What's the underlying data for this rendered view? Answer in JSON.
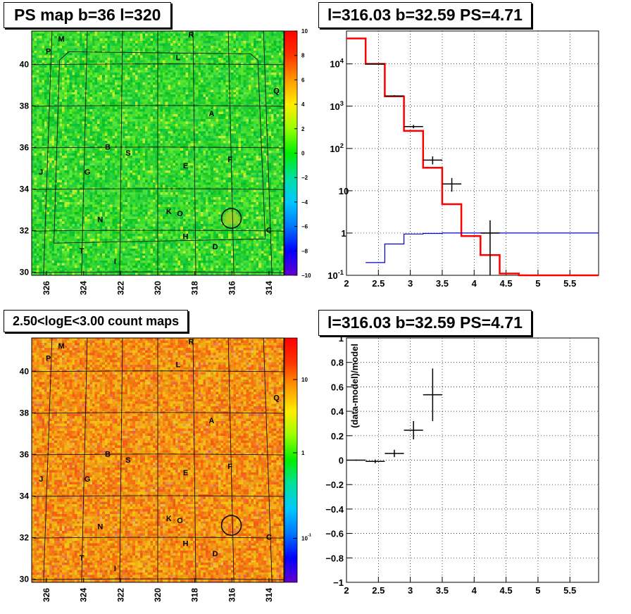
{
  "titles": {
    "map_top": "PS map b=36 l=320",
    "spec_top": "l=316.03 b=32.59 PS=4.71",
    "map_bottom": "2.50<logE<3.00 count maps",
    "spec_bottom": "l=316.03 b=32.59 PS=4.71"
  },
  "chart_data": [
    {
      "type": "heatmap",
      "title": "PS map b=36 l=320",
      "x_ticks": [
        "326",
        "324",
        "322",
        "320",
        "318",
        "316",
        "314"
      ],
      "y_ticks": [
        "30",
        "32",
        "34",
        "36",
        "38",
        "40"
      ],
      "xlim": [
        313.2,
        326.8
      ],
      "ylim": [
        29.85,
        41.6
      ],
      "colorbar": {
        "min": -10,
        "max": 10,
        "ticks": [
          "10",
          "8",
          "6",
          "4",
          "2",
          "0",
          "−2",
          "−4",
          "−6",
          "−8",
          "−10"
        ]
      },
      "source_labels": [
        {
          "t": "M",
          "l": 325.2,
          "b": 41.1
        },
        {
          "t": "P",
          "l": 325.9,
          "b": 40.5
        },
        {
          "t": "R",
          "l": 318.2,
          "b": 41.3
        },
        {
          "t": "L",
          "l": 318.9,
          "b": 40.2
        },
        {
          "t": "Q",
          "l": 313.6,
          "b": 38.6
        },
        {
          "t": "A",
          "l": 317.1,
          "b": 37.5
        },
        {
          "t": "B",
          "l": 322.7,
          "b": 35.9
        },
        {
          "t": "S",
          "l": 321.6,
          "b": 35.6
        },
        {
          "t": "J",
          "l": 326.3,
          "b": 34.7
        },
        {
          "t": "G",
          "l": 323.8,
          "b": 34.7
        },
        {
          "t": "E",
          "l": 318.5,
          "b": 35.0
        },
        {
          "t": "F",
          "l": 316.1,
          "b": 35.3
        },
        {
          "t": "K",
          "l": 319.4,
          "b": 32.8
        },
        {
          "t": "O",
          "l": 318.8,
          "b": 32.7
        },
        {
          "t": "N",
          "l": 323.1,
          "b": 32.4
        },
        {
          "t": "C",
          "l": 314.0,
          "b": 31.9
        },
        {
          "t": "H",
          "l": 318.5,
          "b": 31.6
        },
        {
          "t": "D",
          "l": 316.9,
          "b": 31.1
        },
        {
          "t": "T",
          "l": 324.1,
          "b": 30.9
        },
        {
          "t": "I",
          "l": 322.3,
          "b": 30.4
        }
      ],
      "circle": {
        "l": 316.03,
        "b": 32.59
      }
    },
    {
      "type": "line",
      "title": "l=316.03 b=32.59 PS=4.71",
      "xlim": [
        2,
        5.95
      ],
      "ylim": [
        0.1,
        60000
      ],
      "yscale": "log",
      "grid": true,
      "x_ticks": [
        "2",
        "2.5",
        "3",
        "3.5",
        "4",
        "4.5",
        "5",
        "5.5"
      ],
      "y_ticks": [
        "10^-1",
        "1",
        "10",
        "10^2",
        "10^3",
        "10^4"
      ],
      "bin_edges": [
        2.0,
        2.3,
        2.6,
        2.9,
        3.2,
        3.5,
        3.8,
        4.1,
        4.4,
        4.7,
        5.0,
        5.3,
        5.6,
        5.95
      ],
      "series": [
        {
          "values": [
            40000,
            10000,
            1700,
            260,
            35,
            4.8,
            0.85,
            0.3,
            0.11,
            0.1,
            0.1,
            0.1,
            0.1
          ],
          "color": "#ff0000"
        },
        {
          "values": [
            0.08,
            0.2,
            0.55,
            0.95,
            0.98,
            1,
            1,
            1,
            1,
            1,
            1,
            1,
            1
          ],
          "color": "#0000cc"
        }
      ],
      "data_points": [
        {
          "x": 2.45,
          "y": 10000,
          "xerr": 0.15,
          "ylo": 9800,
          "yhi": 10200
        },
        {
          "x": 2.75,
          "y": 1750,
          "xerr": 0.15,
          "ylo": 1680,
          "yhi": 1820
        },
        {
          "x": 3.05,
          "y": 330,
          "xerr": 0.15,
          "ylo": 300,
          "yhi": 360
        },
        {
          "x": 3.35,
          "y": 53,
          "xerr": 0.15,
          "ylo": 42,
          "yhi": 65
        },
        {
          "x": 3.65,
          "y": 14.5,
          "xerr": 0.15,
          "ylo": 9.5,
          "yhi": 20
        },
        {
          "x": 4.25,
          "y": 1.0,
          "xerr": 0.15,
          "ylo": 0.1,
          "yhi": 2.0
        }
      ]
    },
    {
      "type": "heatmap",
      "title": "2.50<logE<3.00 count maps",
      "x_ticks": [
        "326",
        "324",
        "322",
        "320",
        "318",
        "316",
        "314"
      ],
      "y_ticks": [
        "30",
        "32",
        "34",
        "36",
        "38",
        "40"
      ],
      "xlim": [
        313.2,
        326.8
      ],
      "ylim": [
        29.85,
        41.6
      ],
      "colorbar": {
        "scale": "log",
        "ticks": [
          "10",
          "1",
          "10^-1"
        ]
      }
    },
    {
      "type": "scatter",
      "title": "l=316.03 b=32.59 PS=4.71",
      "ylabel": "(data-model)/model",
      "xlim": [
        2,
        5.95
      ],
      "ylim": [
        -1,
        1
      ],
      "grid": true,
      "x_ticks": [
        "2",
        "2.5",
        "3",
        "3.5",
        "4",
        "4.5",
        "5",
        "5.5"
      ],
      "y_ticks": [
        "1",
        "0.8",
        "0.6",
        "0.4",
        "0.2",
        "0",
        "−0.2",
        "−0.4",
        "−0.6",
        "−0.8",
        "−1"
      ],
      "points": [
        {
          "x": 2.15,
          "y": 0.0,
          "xerr": 0.15,
          "yerr": 0.005
        },
        {
          "x": 2.45,
          "y": -0.01,
          "xerr": 0.15,
          "yerr": 0.015
        },
        {
          "x": 2.75,
          "y": 0.055,
          "xerr": 0.15,
          "yerr": 0.03
        },
        {
          "x": 3.05,
          "y": 0.245,
          "xerr": 0.15,
          "yerr": 0.075
        },
        {
          "x": 3.35,
          "y": 0.535,
          "xerr": 0.15,
          "yerr": 0.215
        }
      ]
    }
  ]
}
